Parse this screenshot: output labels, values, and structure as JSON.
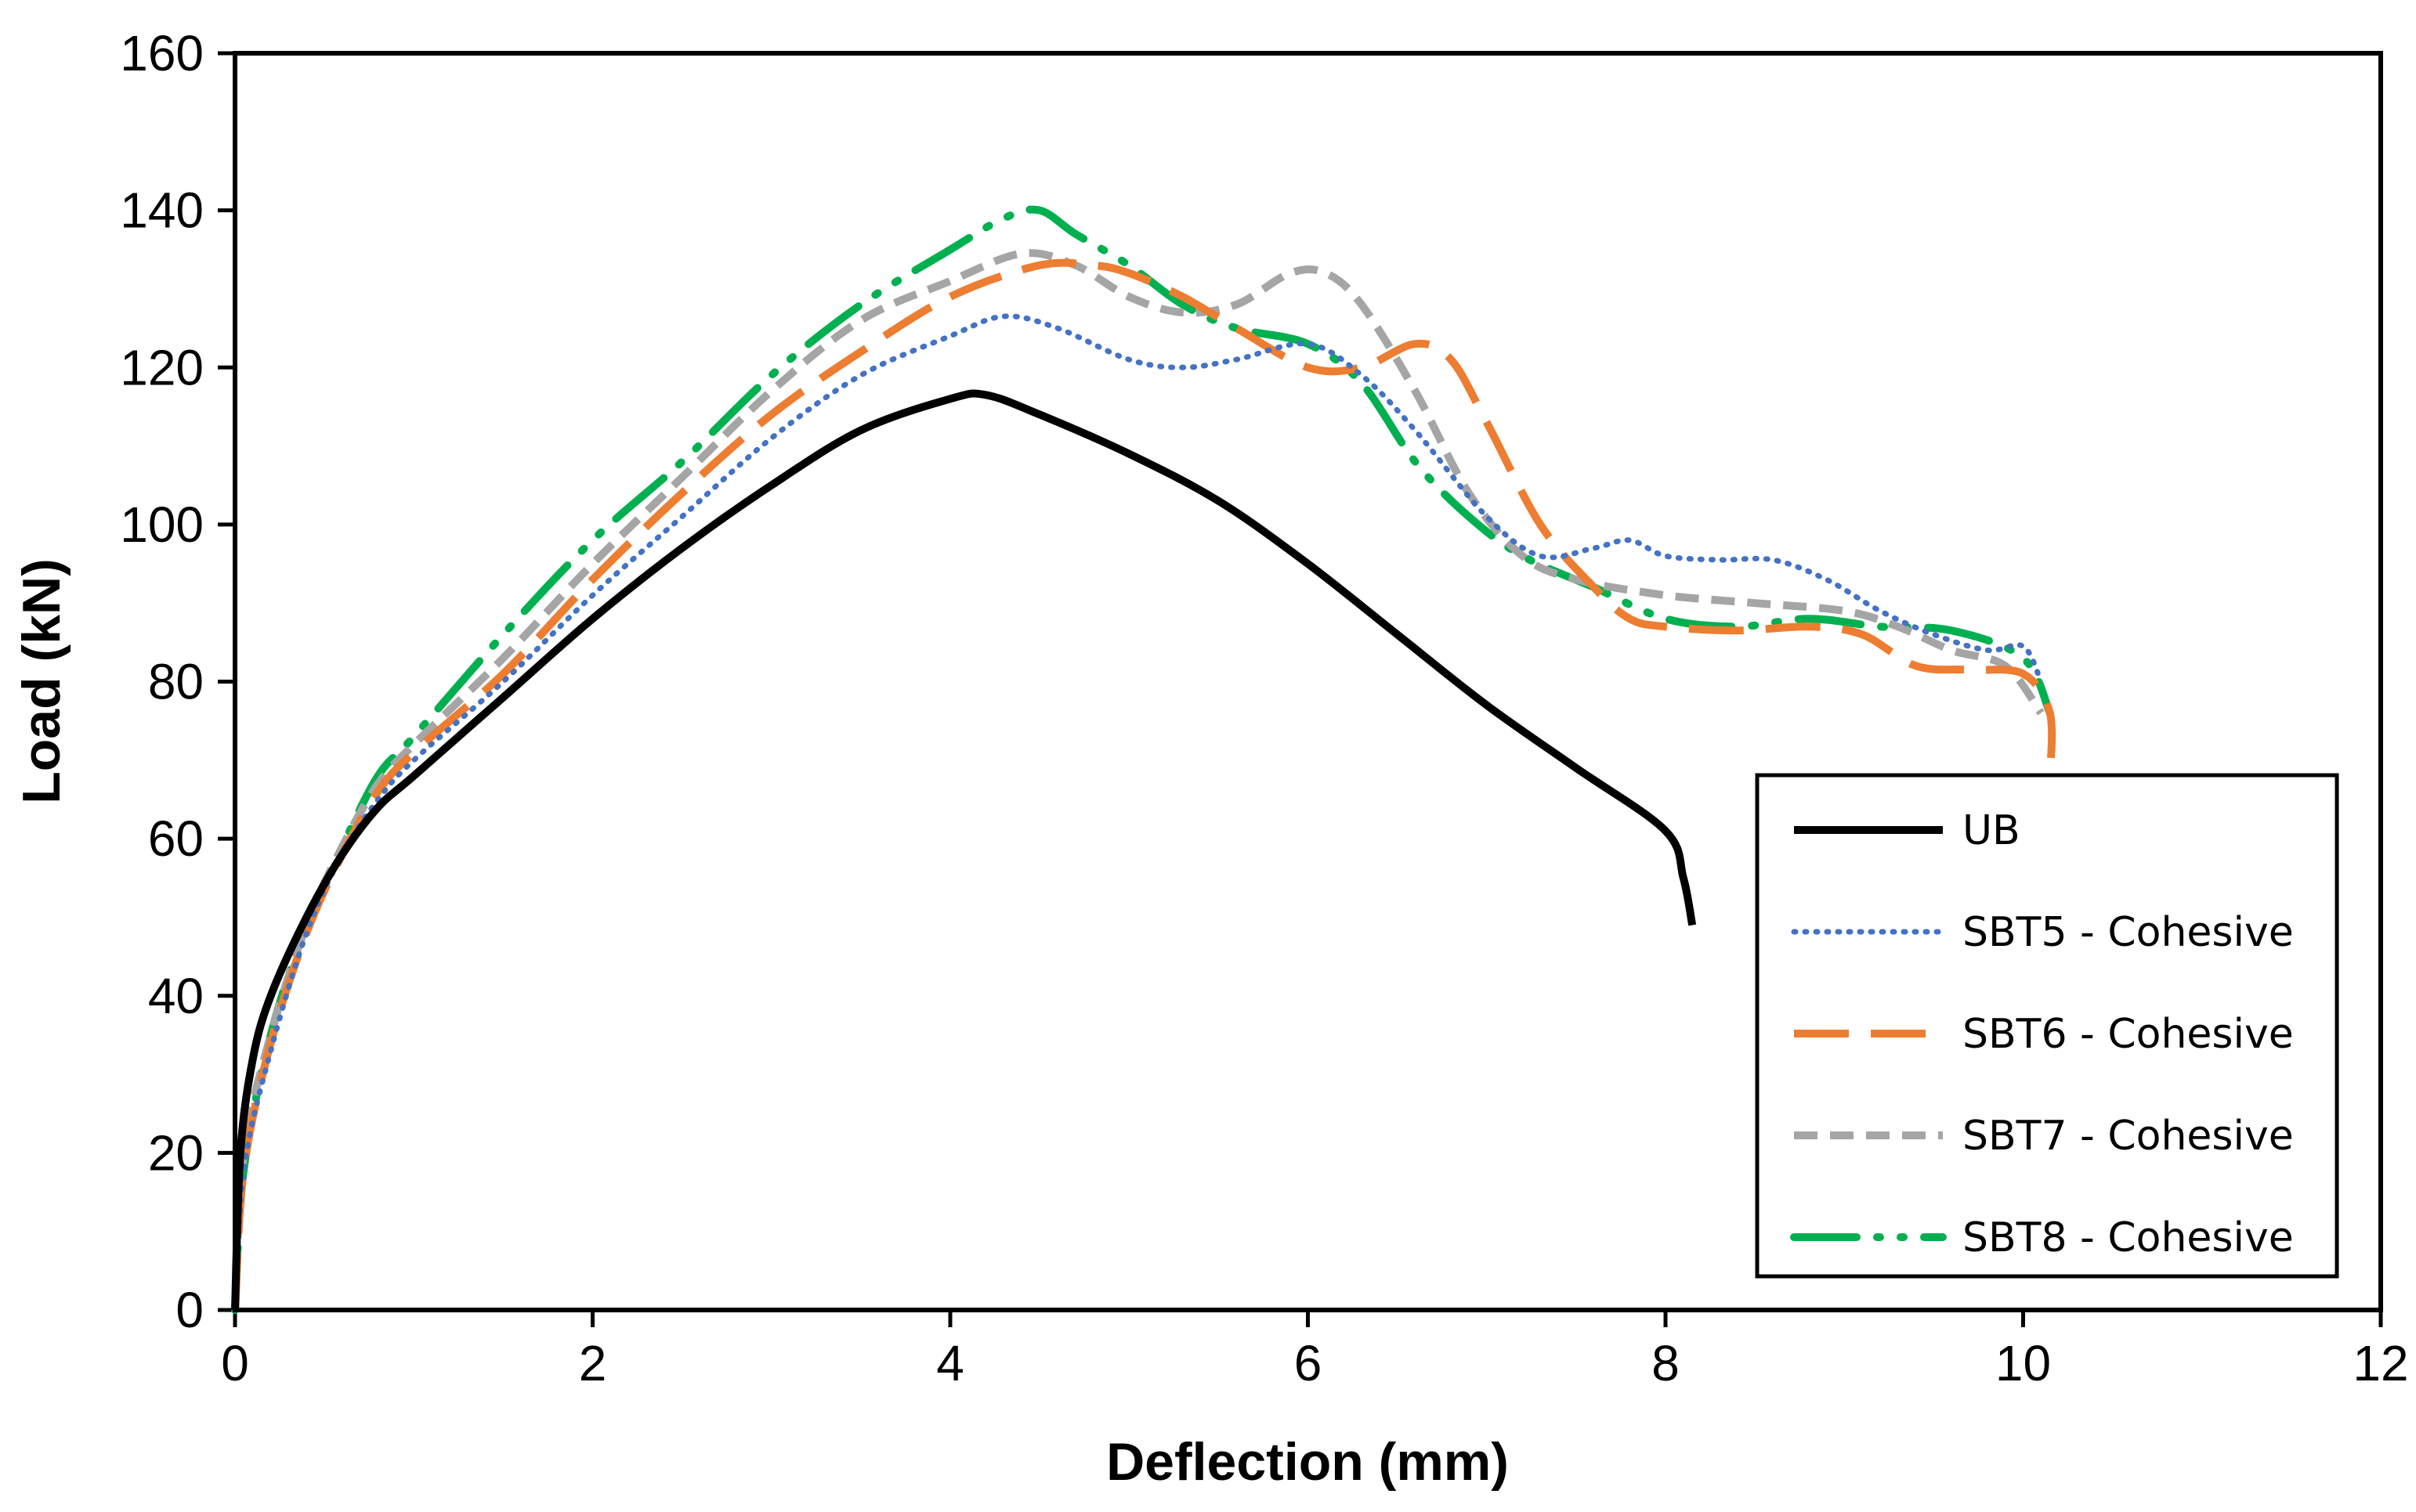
{
  "chart_data": {
    "type": "line",
    "title": "",
    "xlabel": "Deflection (mm)",
    "ylabel": "Load (kN)",
    "xlim": [
      0,
      12
    ],
    "ylim": [
      0,
      160
    ],
    "xticks": [
      "0",
      "2",
      "4",
      "6",
      "8",
      "10",
      "12"
    ],
    "yticks": [
      "0",
      "20",
      "40",
      "60",
      "80",
      "100",
      "120",
      "140",
      "160"
    ],
    "grid": false,
    "legend_position": "bottom-right",
    "series": [
      {
        "name": "UB",
        "color": "#000000",
        "style": "solid",
        "x": [
          0,
          0.03,
          0.1,
          0.2,
          0.4,
          0.6,
          0.8,
          1.0,
          1.5,
          2.0,
          2.5,
          3.0,
          3.5,
          4.0,
          4.2,
          4.5,
          5.0,
          5.5,
          6.0,
          6.5,
          7.0,
          7.5,
          8.0,
          8.1,
          8.15
        ],
        "y": [
          0,
          20,
          32,
          40,
          50,
          58,
          64,
          68,
          78,
          88,
          97,
          105,
          112,
          116,
          116.5,
          114,
          109,
          103,
          95,
          86,
          77,
          69,
          61,
          55,
          49
        ]
      },
      {
        "name": "SBT5 - Cohesive",
        "color": "#4472C4",
        "style": "dotted",
        "x": [
          0,
          0.05,
          0.2,
          0.4,
          0.6,
          0.8,
          1.0,
          1.5,
          2.0,
          2.5,
          3.0,
          3.5,
          4.0,
          4.3,
          4.6,
          5.0,
          5.3,
          5.6,
          6.0,
          6.3,
          6.6,
          7.0,
          7.3,
          7.6,
          7.8,
          8.0,
          8.3,
          8.6,
          8.9,
          9.2,
          9.5,
          9.8,
          10.0,
          10.1
        ],
        "y": [
          0,
          18,
          33,
          48,
          58,
          65,
          70,
          80,
          91,
          101,
          111,
          119,
          124,
          126.5,
          125,
          121,
          120,
          121,
          123,
          119,
          112,
          101,
          96,
          97,
          98,
          96,
          95.5,
          95.5,
          93,
          89,
          86,
          84,
          84.5,
          80
        ]
      },
      {
        "name": "SBT6 - Cohesive",
        "color": "#ED7D31",
        "style": "dashed",
        "x": [
          0,
          0.05,
          0.2,
          0.4,
          0.6,
          0.8,
          1.0,
          1.5,
          2.0,
          2.5,
          3.0,
          3.5,
          4.0,
          4.5,
          4.8,
          5.0,
          5.3,
          5.6,
          6.0,
          6.3,
          6.6,
          6.8,
          7.0,
          7.3,
          7.6,
          7.8,
          8.0,
          8.4,
          8.8,
          9.1,
          9.4,
          9.7,
          10.0,
          10.15,
          10.15
        ],
        "y": [
          0,
          18,
          34,
          48,
          58,
          66,
          71,
          81,
          93,
          104,
          114,
          122,
          129,
          133,
          133,
          132,
          129,
          125,
          120,
          120,
          123,
          121,
          113,
          100,
          92,
          88,
          87,
          86.5,
          87,
          86,
          82,
          81.5,
          81,
          76,
          68
        ]
      },
      {
        "name": "SBT7 - Cohesive",
        "color": "#A5A5A5",
        "style": "dashed-short",
        "x": [
          0,
          0.05,
          0.2,
          0.4,
          0.6,
          0.8,
          1.0,
          1.5,
          2.0,
          2.5,
          3.0,
          3.5,
          4.0,
          4.4,
          4.7,
          5.0,
          5.3,
          5.6,
          5.9,
          6.1,
          6.3,
          6.6,
          6.9,
          7.2,
          7.5,
          8.0,
          8.5,
          9.0,
          9.3,
          9.6,
          9.9,
          10.1
        ],
        "y": [
          0,
          20,
          35,
          49,
          59,
          67,
          72,
          83,
          95,
          106,
          117,
          126,
          131,
          134.5,
          133,
          129,
          127,
          128,
          132,
          132,
          128,
          117,
          104,
          96,
          93,
          91,
          90,
          89,
          87,
          84,
          82,
          76
        ]
      },
      {
        "name": "SBT8 - Cohesive",
        "color": "#00B050",
        "style": "dash-dot-dot",
        "x": [
          0,
          0.05,
          0.2,
          0.4,
          0.6,
          0.8,
          1.0,
          1.5,
          2.0,
          2.5,
          3.0,
          3.5,
          4.0,
          4.3,
          4.5,
          4.7,
          5.0,
          5.3,
          5.6,
          6.0,
          6.3,
          6.6,
          6.9,
          7.2,
          7.6,
          8.0,
          8.4,
          8.8,
          9.2,
          9.6,
          10.0,
          10.15
        ],
        "y": [
          0,
          18,
          35,
          49,
          59,
          68,
          73,
          86,
          98,
          108,
          119,
          128,
          135,
          139,
          140,
          137,
          133,
          128,
          125,
          123,
          118,
          108,
          101,
          96,
          92,
          88,
          87,
          88,
          87,
          86.5,
          83,
          76
        ]
      }
    ]
  }
}
